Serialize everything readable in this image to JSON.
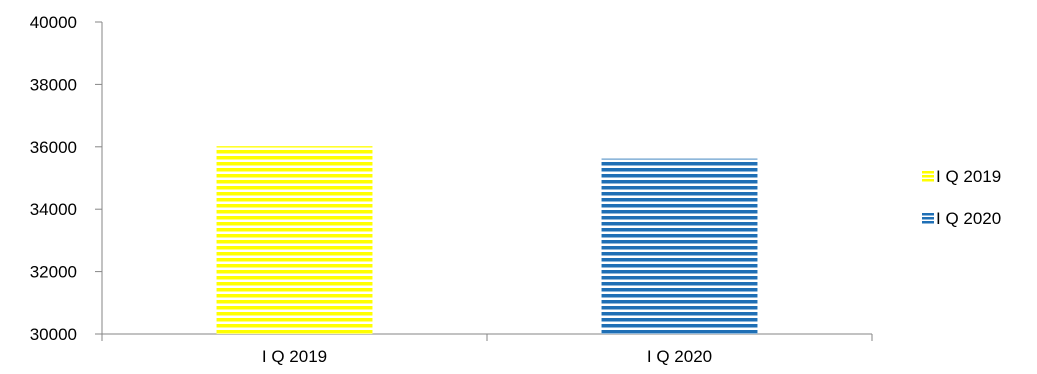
{
  "chart_data": {
    "type": "bar",
    "categories": [
      "I Q 2019",
      "I Q 2020"
    ],
    "values": [
      36020,
      35620
    ],
    "ylim": [
      30000,
      40000
    ],
    "yticks": [
      30000,
      32000,
      34000,
      36000,
      38000,
      40000
    ],
    "ytick_labels": [
      "30000",
      "32000",
      "34000",
      "36000",
      "38000",
      "40000"
    ],
    "grid": false,
    "legend": {
      "position": "right",
      "entries": [
        "I Q 2019",
        "I Q 2020"
      ]
    },
    "colors": [
      "#FFFF00",
      "#1F6FB5"
    ],
    "pattern": "horizontal-stripes"
  }
}
